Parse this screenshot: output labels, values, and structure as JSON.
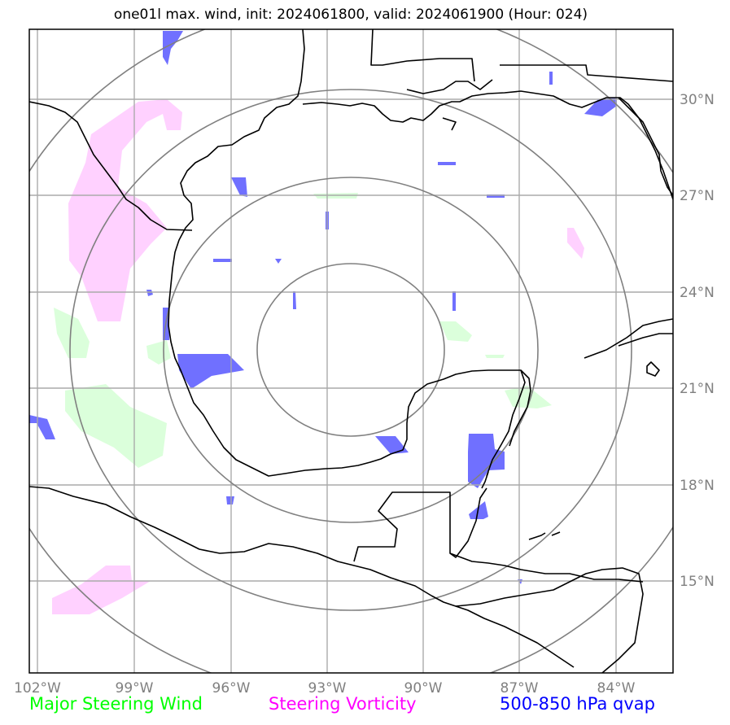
{
  "title": "one01l max. wind, init: 2024061800, valid: 2024061900 (Hour: 024)",
  "map": {
    "lon_ticks": [
      "102°W",
      "99°W",
      "96°W",
      "93°W",
      "90°W",
      "87°W",
      "84°W"
    ],
    "lat_ticks": [
      "30°N",
      "27°N",
      "24°N",
      "21°N",
      "18°N",
      "15°N"
    ],
    "range_rings": 4,
    "colors": {
      "steering_wind": "#00ff00",
      "steering_vorticity": "#ff00ff",
      "qvap": "#0000ff",
      "grid": "#aaaaaa",
      "rings": "#808080",
      "coast": "#000000"
    }
  },
  "legend": {
    "steering_wind": "Major Steering Wind",
    "steering_vorticity": "Steering Vorticity",
    "qvap": "500-850 hPa qvap"
  }
}
